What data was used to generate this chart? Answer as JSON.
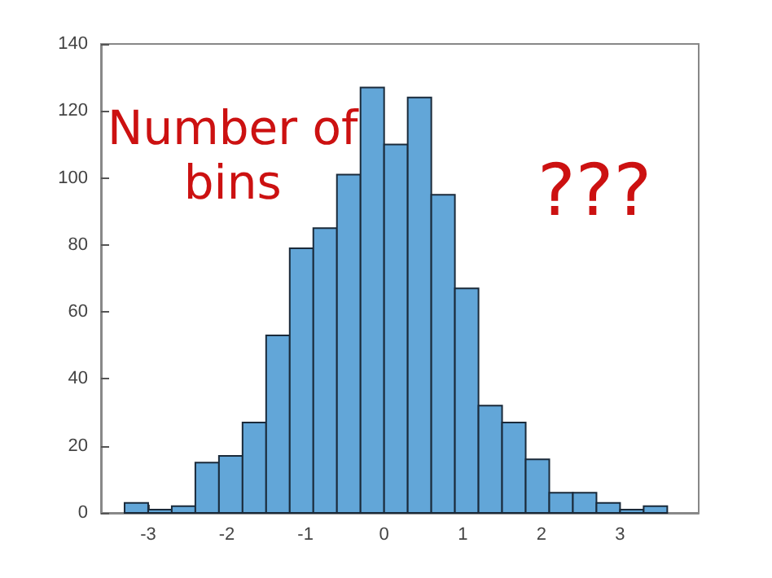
{
  "chart_data": {
    "type": "histogram",
    "bins": [
      -3.3,
      -3.0,
      -2.7,
      -2.4,
      -2.1,
      -1.8,
      -1.5,
      -1.2,
      -0.9,
      -0.6,
      -0.3,
      0,
      0.3,
      0.6,
      0.9,
      1.2,
      1.5,
      1.8,
      2.1,
      2.4,
      2.7,
      3.0,
      3.3,
      3.6
    ],
    "values": [
      3,
      1,
      2,
      15,
      17,
      27,
      53,
      79,
      85,
      101,
      127,
      110,
      124,
      95,
      67,
      32,
      27,
      16,
      6,
      6,
      3,
      1,
      2
    ],
    "color": "#62a6d8",
    "xlim": [
      -3.6,
      4
    ],
    "xticks": [
      -3,
      -2,
      -1,
      0,
      1,
      2,
      3
    ],
    "ylim": [
      0,
      140
    ],
    "yticks": [
      0,
      20,
      40,
      60,
      80,
      100,
      120,
      140
    ],
    "grid": false,
    "annotations": [
      "Number of\nbins",
      "???"
    ]
  }
}
